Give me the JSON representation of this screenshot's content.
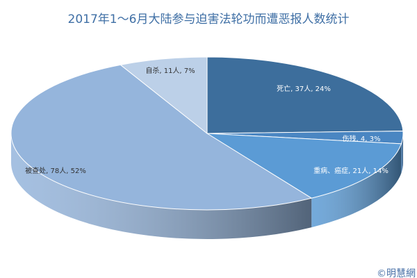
{
  "chart_data": {
    "type": "pie3d",
    "title": "2017年1～6月大陆参与迫害法轮功而遭恶报人数统计",
    "categories": [
      "死亡",
      "伤残",
      "重病、癌症",
      "被查处",
      "自杀"
    ],
    "values": [
      37,
      4,
      21,
      78,
      11
    ],
    "value_labels": [
      "死亡, 37人, 24%",
      "伤残, 4, 3%",
      "重病、癌症, 21人, 14%",
      "被查处, 78人, 52%",
      "自杀, 11人, 7%"
    ],
    "colors": [
      "#3d6e9c",
      "#4a86c2",
      "#5b9bd5",
      "#95b5dc",
      "#bcd0e8"
    ],
    "watermark": "©明慧網"
  }
}
